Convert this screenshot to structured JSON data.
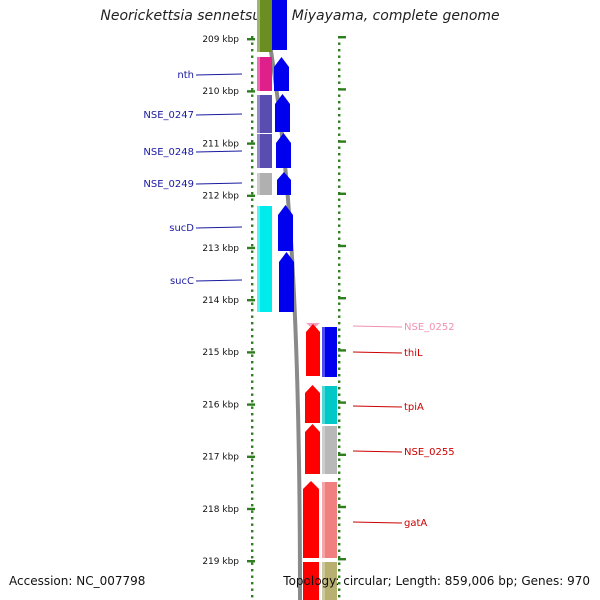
{
  "title": "Neorickettsia sennetsu str. Miyayama, complete genome",
  "footer": {
    "accession": "Accession: NC_007798",
    "summary": "Topology: circular; Length: 859,006 bp; Genes: 970"
  },
  "scale": {
    "labels": [
      "209 kbp",
      "210 kbp",
      "211 kbp",
      "212 kbp",
      "213 kbp",
      "214 kbp",
      "215 kbp",
      "216 kbp",
      "217 kbp",
      "218 kbp",
      "219 kbp"
    ]
  },
  "left_genes": [
    {
      "name": "nth",
      "color": "#1a1aa0"
    },
    {
      "name": "NSE_0247",
      "color": "#1a1aa0"
    },
    {
      "name": "NSE_0248",
      "color": "#1a1aa0"
    },
    {
      "name": "NSE_0249",
      "color": "#1a1aa0"
    },
    {
      "name": "sucD",
      "color": "#1a1aa0"
    },
    {
      "name": "sucC",
      "color": "#1a1aa0"
    }
  ],
  "right_genes": [
    {
      "name": "NSE_0252",
      "color": "#f090b0"
    },
    {
      "name": "thiL",
      "color": "#cc0000"
    },
    {
      "name": "tpiA",
      "color": "#cc0000"
    },
    {
      "name": "NSE_0255",
      "color": "#cc0000"
    },
    {
      "name": "gatA",
      "color": "#cc0000"
    }
  ],
  "colors": {
    "tick": "#2e7d1e",
    "backbone": "#8a8a8a",
    "left_label": "#1a1aa0",
    "right_label": "#cc0000",
    "pale_label": "#f090b0"
  }
}
